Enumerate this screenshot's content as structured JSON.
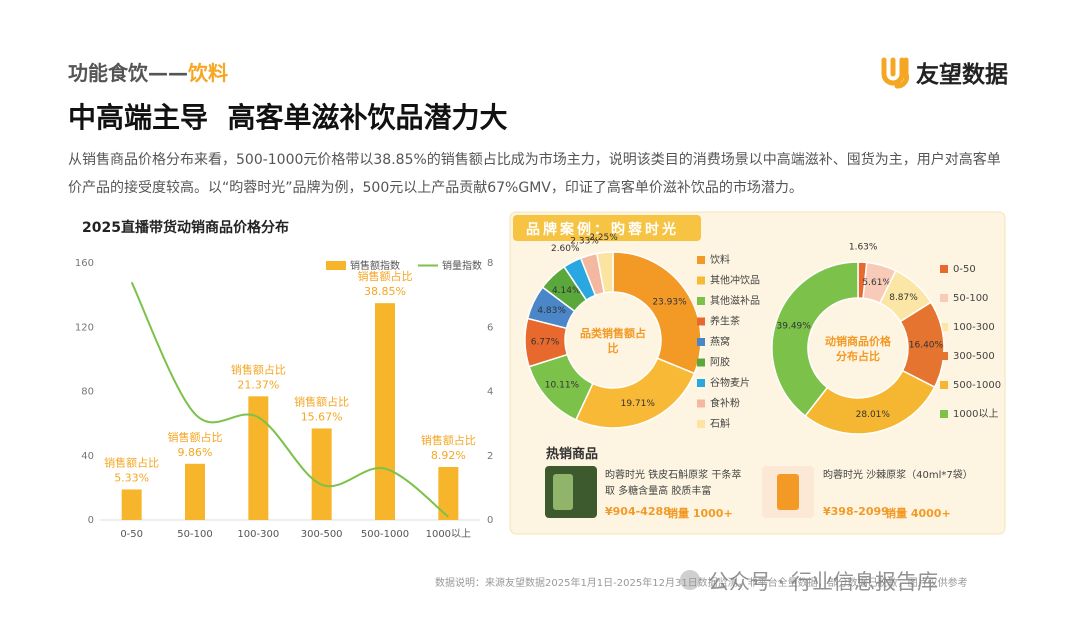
{
  "header": {
    "section": "功能食饮——",
    "section_highlight": "饮料",
    "brand": "友望数据",
    "title": "中高端主导  高客单滋补饮品潜力大",
    "description": "从销售商品价格分布来看，500-1000元价格带以38.85%的销售额占比成为市场主力，说明该类目的消费场景以中高端滋补、囤货为主，用户对高客单价产品的接受度较高。以“昀蓉时光”品牌为例，500元以上产品贡献67%GMV，印证了高客单价滋补饮品的市场潜力。"
  },
  "chart_data": [
    {
      "type": "bar",
      "title": "2025直播带货动销商品价格分布",
      "categories": [
        "0-50",
        "50-100",
        "100-300",
        "300-500",
        "500-1000",
        "1000以上"
      ],
      "series": [
        {
          "name": "销售额指数",
          "type": "bar",
          "color": "#f7b52c",
          "values": [
            19,
            35,
            77,
            57,
            135,
            33
          ]
        },
        {
          "name": "销量指数",
          "type": "line",
          "axis": "y2",
          "color": "#7cc24a",
          "values": [
            7.4,
            3.3,
            3.2,
            1.1,
            1.6,
            0.1
          ]
        }
      ],
      "ylim": [
        0,
        160
      ],
      "yticks": [
        0,
        40,
        80,
        120,
        160
      ],
      "y2lim": [
        0,
        8
      ],
      "y2ticks": [
        0,
        2,
        4,
        6,
        8
      ],
      "annotation_title": "销售额占比",
      "annotations": [
        "5.33%",
        "9.86%",
        "21.37%",
        "15.67%",
        "38.85%",
        "8.92%"
      ]
    },
    {
      "type": "donut",
      "title": "品类销售额占比",
      "categories": [
        "饮料",
        "其他冲饮品",
        "其他滋补品",
        "养生茶",
        "燕窝",
        "阿胶",
        "谷物麦片",
        "食补粉",
        "石斛"
      ],
      "values": [
        23.93,
        19.71,
        10.11,
        6.77,
        4.83,
        4.14,
        2.6,
        2.33,
        2.25
      ],
      "value_labels": [
        "23.93%",
        "19.71%",
        "10.11%",
        "6.77%",
        "4.83%",
        "4.14%",
        "2.60%",
        "2.33%",
        "2.25%"
      ],
      "colors": [
        "#f39a26",
        "#f7b936",
        "#7cc24a",
        "#e8692e",
        "#4a86c8",
        "#5aa83c",
        "#2aa6e0",
        "#f4b8a0",
        "#fbe3a0"
      ]
    },
    {
      "type": "donut",
      "title": "动销商品价格分布占比",
      "categories": [
        "0-50",
        "50-100",
        "100-300",
        "300-500",
        "500-1000",
        "1000以上"
      ],
      "values": [
        1.63,
        5.61,
        8.87,
        16.4,
        28.01,
        39.49
      ],
      "value_labels": [
        "1.63%",
        "5.61%",
        "8.87%",
        "16.40%",
        "28.01%",
        "39.49%"
      ],
      "colors": [
        "#e8692e",
        "#f8cbb8",
        "#fbe6a6",
        "#e4742f",
        "#f5b731",
        "#7cc24a"
      ]
    }
  ],
  "case": {
    "title": "品牌案例：昀蓉时光",
    "hot_title": "热销商品",
    "products": [
      {
        "name": "昀蓉时光  铁皮石斛原浆  干条萃取 多糖含量高 胶质丰富",
        "price": "¥904-4288",
        "sales": "销量 1000+"
      },
      {
        "name": "昀蓉时光 沙棘原浆（40ml*7袋）",
        "price": "¥398-2099",
        "sales": "销量 4000+"
      }
    ]
  },
  "footnote": "数据说明：来源友望数据2025年1月1日-2025年12月31日数据监测，非平台全量数据，部分数据已脱敏，图片仅供参考",
  "watermark": "公众号 · 行业信息报告库"
}
